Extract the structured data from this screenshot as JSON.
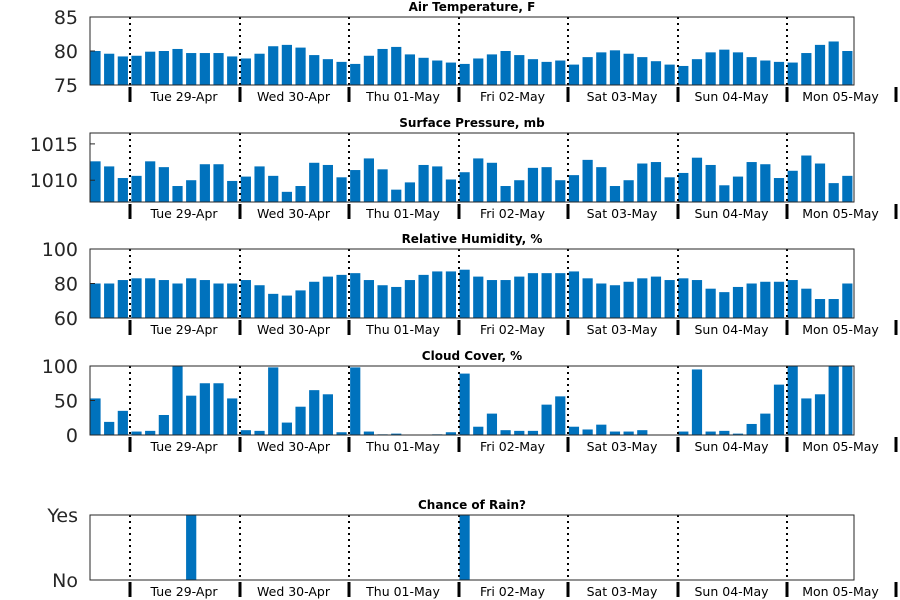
{
  "chart_data": [
    {
      "type": "bar",
      "title": "Air Temperature, F",
      "yticks": [
        "75",
        "80",
        "85"
      ],
      "ylim": [
        75,
        85
      ],
      "xtick_labels": [
        "Tue 29-Apr",
        "Wed 30-Apr",
        "Thu 01-May",
        "Fri 02-May",
        "Sat 03-May",
        "Sun 04-May",
        "Mon 05-May"
      ],
      "values": [
        80.0,
        79.6,
        79.2,
        79.3,
        79.9,
        80.0,
        80.3,
        79.7,
        79.7,
        79.7,
        79.2,
        78.9,
        79.6,
        80.7,
        80.9,
        80.5,
        79.4,
        78.8,
        78.4,
        78.1,
        79.3,
        80.3,
        80.6,
        79.5,
        79.0,
        78.6,
        78.3,
        78.1,
        78.9,
        79.5,
        80.0,
        79.4,
        78.8,
        78.4,
        78.6,
        78.0,
        79.1,
        79.8,
        80.1,
        79.6,
        79.1,
        78.5,
        78.0,
        77.8,
        78.8,
        79.8,
        80.2,
        79.8,
        79.1,
        78.6,
        78.4,
        78.3,
        79.7,
        80.9,
        81.4,
        80.0
      ],
      "grid": false,
      "bar_color": "#0072BD"
    },
    {
      "type": "bar",
      "title": "Surface Pressure, mb",
      "yticks": [
        "1010",
        "1015"
      ],
      "ylim": [
        1007,
        1016.5
      ],
      "xtick_labels": [
        "Tue 29-Apr",
        "Wed 30-Apr",
        "Thu 01-May",
        "Fri 02-May",
        "Sat 03-May",
        "Sun 04-May",
        "Mon 05-May"
      ],
      "values": [
        1012.6,
        1011.9,
        1010.3,
        1010.6,
        1012.6,
        1011.8,
        1009.2,
        1010.0,
        1012.2,
        1012.2,
        1009.9,
        1010.5,
        1011.9,
        1010.6,
        1008.4,
        1009.2,
        1012.4,
        1012.1,
        1010.4,
        1011.4,
        1013.0,
        1011.5,
        1008.7,
        1009.7,
        1012.1,
        1011.9,
        1010.1,
        1011.1,
        1013.0,
        1012.4,
        1009.2,
        1010.0,
        1011.7,
        1011.8,
        1010.0,
        1010.7,
        1012.8,
        1011.8,
        1009.2,
        1010.0,
        1012.3,
        1012.5,
        1010.4,
        1011.0,
        1013.1,
        1012.1,
        1009.3,
        1010.5,
        1012.5,
        1012.2,
        1010.3,
        1011.3,
        1013.4,
        1012.3,
        1009.6,
        1010.6
      ],
      "grid": false,
      "bar_color": "#0072BD"
    },
    {
      "type": "bar",
      "title": "Relative Humidity, %",
      "yticks": [
        "60",
        "80",
        "100"
      ],
      "ylim": [
        60,
        100
      ],
      "xtick_labels": [
        "Tue 29-Apr",
        "Wed 30-Apr",
        "Thu 01-May",
        "Fri 02-May",
        "Sat 03-May",
        "Sun 04-May",
        "Mon 05-May"
      ],
      "values": [
        80,
        80,
        82,
        83,
        83,
        82,
        80,
        83,
        82,
        80,
        80,
        82,
        79,
        74,
        73,
        76,
        81,
        84,
        85,
        86,
        82,
        79,
        78,
        82,
        85,
        87,
        87,
        88,
        84,
        82,
        82,
        84,
        86,
        86,
        86,
        87,
        83,
        80,
        79,
        81,
        83,
        84,
        82,
        83,
        82,
        77,
        75,
        78,
        80,
        81,
        81,
        82,
        77,
        71,
        71,
        80
      ],
      "grid": false,
      "bar_color": "#0072BD"
    },
    {
      "type": "bar",
      "title": "Cloud Cover, %",
      "yticks": [
        "0",
        "50",
        "100"
      ],
      "ylim": [
        0,
        100
      ],
      "xtick_labels": [
        "Tue 29-Apr",
        "Wed 30-Apr",
        "Thu 01-May",
        "Fri 02-May",
        "Sat 03-May",
        "Sun 04-May",
        "Mon 05-May"
      ],
      "values": [
        53,
        19,
        35,
        5,
        6,
        29,
        100,
        57,
        75,
        75,
        53,
        7,
        6,
        98,
        18,
        41,
        65,
        59,
        4,
        98,
        5,
        1,
        2,
        0,
        0,
        1,
        4,
        89,
        12,
        31,
        7,
        6,
        6,
        44,
        56,
        12,
        8,
        15,
        5,
        5,
        7,
        0,
        0,
        5,
        95,
        5,
        6,
        2,
        16,
        31,
        73,
        100,
        53,
        59,
        100,
        100
      ],
      "grid": false,
      "bar_color": "#0072BD"
    },
    {
      "type": "bar",
      "title": "Chance of Rain?",
      "yticks": [
        "No",
        "Yes"
      ],
      "ylim": [
        0,
        1
      ],
      "xtick_labels": [
        "Tue 29-Apr",
        "Wed 30-Apr",
        "Thu 01-May",
        "Fri 02-May",
        "Sat 03-May",
        "Sun 04-May",
        "Mon 05-May"
      ],
      "values": [
        0,
        0,
        0,
        0,
        0,
        0,
        0,
        1,
        0,
        0,
        0,
        0,
        0,
        0,
        0,
        0,
        0,
        0,
        0,
        0,
        0,
        0,
        0,
        0,
        0,
        0,
        0,
        1,
        0,
        0,
        0,
        0,
        0,
        0,
        0,
        0,
        0,
        0,
        0,
        0,
        0,
        0,
        0,
        0,
        0,
        0,
        0,
        0,
        0,
        0,
        0,
        0,
        0,
        0,
        0,
        0
      ],
      "grid": false,
      "bar_color": "#0072BD"
    }
  ]
}
